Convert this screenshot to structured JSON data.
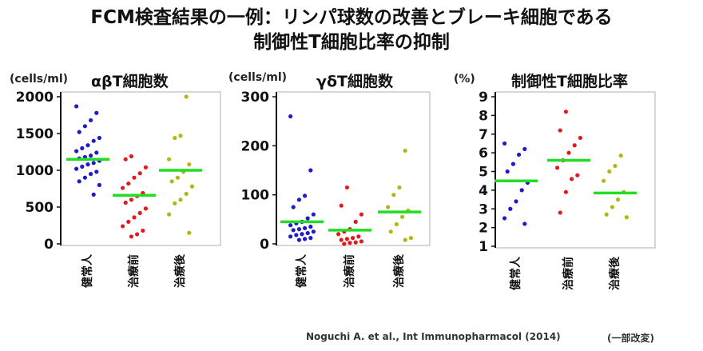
{
  "title": {
    "line1": "FCM検査結果の一例：リンパ球数の改善とブレーキ細胞である",
    "line2": "制御性T細胞比率の抑制"
  },
  "colors": {
    "healthy": "#1c1cc8",
    "pre": "#e01b1b",
    "post": "#b5b516",
    "mean_line": "#22dd22"
  },
  "chart_data": [
    {
      "type": "scatter",
      "title": "αβT細胞数",
      "unit": "(cells/ml)",
      "ylim": [
        0,
        2000
      ],
      "yticks": [
        0,
        500,
        1000,
        1500,
        2000
      ],
      "ytick_labels": [
        "0",
        "500",
        "1000",
        "1500",
        "2000"
      ],
      "categories": [
        "健常人",
        "治療前",
        "治療後"
      ],
      "series": [
        {
          "name": "健常人",
          "mean": 1150,
          "values": [
            1870,
            1780,
            1680,
            1600,
            1520,
            1440,
            1400,
            1340,
            1300,
            1260,
            1240,
            1200,
            1180,
            1160,
            1130,
            1100,
            1080,
            1050,
            1020,
            980,
            950,
            900,
            850,
            800,
            670
          ]
        },
        {
          "name": "治療前",
          "mean": 660,
          "values": [
            1190,
            1150,
            1040,
            960,
            900,
            820,
            760,
            690,
            650,
            600,
            560,
            480,
            420,
            360,
            300,
            240,
            180,
            130,
            100
          ]
        },
        {
          "name": "治療後",
          "mean": 1000,
          "values": [
            2000,
            1470,
            1440,
            1150,
            1080,
            980,
            900,
            850,
            780,
            680,
            600,
            550,
            400,
            150
          ]
        }
      ]
    },
    {
      "type": "scatter",
      "title": "γδT細胞数",
      "unit": "(cells/ml)",
      "ylim": [
        0,
        300
      ],
      "yticks": [
        0,
        100,
        200,
        300
      ],
      "ytick_labels": [
        "0",
        "100",
        "200",
        "300"
      ],
      "categories": [
        "健常人",
        "治療前",
        "治療後"
      ],
      "series": [
        {
          "name": "健常人",
          "mean": 45,
          "values": [
            260,
            150,
            98,
            90,
            75,
            60,
            52,
            45,
            42,
            38,
            35,
            32,
            30,
            28,
            25,
            22,
            20,
            18,
            15,
            12,
            10,
            8
          ]
        },
        {
          "name": "治療前",
          "mean": 28,
          "values": [
            115,
            78,
            60,
            45,
            30,
            25,
            20,
            15,
            12,
            10,
            8,
            5,
            3,
            2,
            0
          ]
        },
        {
          "name": "治療後",
          "mean": 65,
          "values": [
            190,
            115,
            100,
            75,
            68,
            55,
            40,
            25,
            12,
            8
          ]
        }
      ]
    },
    {
      "type": "scatter",
      "title": "制御性T細胞比率",
      "unit": "(%)",
      "ylim": [
        1,
        9
      ],
      "yticks": [
        1,
        2,
        3,
        4,
        5,
        6,
        7,
        8,
        9
      ],
      "ytick_labels": [
        "1",
        "2",
        "3",
        "4",
        "5",
        "6",
        "7",
        "8",
        "9"
      ],
      "categories": [
        "健常人",
        "治療前",
        "治療後"
      ],
      "series": [
        {
          "name": "健常人",
          "mean": 4.5,
          "values": [
            6.5,
            6.2,
            5.9,
            5.4,
            5.0,
            4.4,
            4.0,
            3.4,
            3.0,
            2.5,
            2.2
          ]
        },
        {
          "name": "治療前",
          "mean": 5.6,
          "values": [
            8.2,
            7.2,
            6.8,
            6.4,
            6.0,
            5.6,
            5.2,
            4.8,
            4.6,
            3.9,
            2.8
          ]
        },
        {
          "name": "治療後",
          "mean": 3.85,
          "values": [
            5.85,
            5.3,
            5.0,
            4.5,
            3.9,
            3.5,
            3.1,
            2.7,
            2.55
          ]
        }
      ]
    }
  ],
  "citation": "Noguchi A. et al., Int Immunopharmacol (2014)",
  "note": "(一部改変)"
}
